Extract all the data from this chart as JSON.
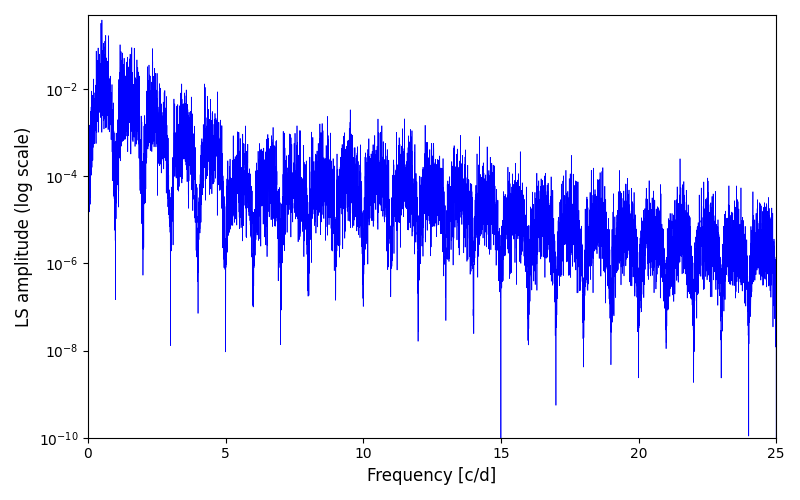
{
  "title": "",
  "xlabel": "Frequency [c/d]",
  "ylabel": "LS amplitude (log scale)",
  "xlim": [
    0,
    25
  ],
  "ylim": [
    1e-10,
    0.5
  ],
  "line_color": "#0000ff",
  "line_width": 0.5,
  "figsize": [
    8.0,
    5.0
  ],
  "dpi": 100,
  "freq_max": 25.0,
  "n_points": 8000,
  "seed": 137
}
